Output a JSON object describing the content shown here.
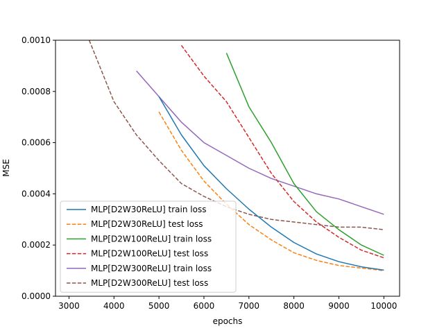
{
  "chart_data": {
    "type": "line",
    "xlabel": "epochs",
    "ylabel": "MSE",
    "xlim": [
      2700,
      10350
    ],
    "ylim": [
      0,
      0.001
    ],
    "x_ticks": [
      "3000",
      "4000",
      "5000",
      "6000",
      "7000",
      "8000",
      "9000",
      "10000"
    ],
    "y_ticks": [
      "0.0000",
      "0.0002",
      "0.0004",
      "0.0006",
      "0.0008",
      "0.0010"
    ],
    "grid": false,
    "legend_position": "lower-left",
    "series": [
      {
        "name": "MLP[D2W30ReLU] train loss",
        "color": "#1f77b4",
        "dash": "solid",
        "x": [
          5000,
          5500,
          6000,
          6500,
          7000,
          7500,
          8000,
          8500,
          9000,
          9500,
          10000
        ],
        "y": [
          0.00078,
          0.00063,
          0.00051,
          0.00042,
          0.00034,
          0.00027,
          0.00021,
          0.000165,
          0.000135,
          0.000115,
          0.000102
        ]
      },
      {
        "name": "MLP[D2W30ReLU] test loss",
        "color": "#ff7f0e",
        "dash": "dashed",
        "x": [
          5000,
          5500,
          6000,
          6500,
          7000,
          7500,
          8000,
          8500,
          9000,
          9500,
          10000
        ],
        "y": [
          0.00072,
          0.00057,
          0.00045,
          0.00036,
          0.00028,
          0.00022,
          0.00017,
          0.00014,
          0.00012,
          0.00011,
          0.0001
        ]
      },
      {
        "name": "MLP[D2W100ReLU] train loss",
        "color": "#2ca02c",
        "dash": "solid",
        "x": [
          6500,
          7000,
          7500,
          8000,
          8500,
          9000,
          9500,
          10000
        ],
        "y": [
          0.00095,
          0.00074,
          0.0006,
          0.00044,
          0.00033,
          0.00026,
          0.0002,
          0.00016
        ]
      },
      {
        "name": "MLP[D2W100ReLU] test loss",
        "color": "#d62728",
        "dash": "dashed",
        "x": [
          5500,
          6000,
          6500,
          7000,
          7500,
          8000,
          8500,
          9000,
          9500,
          10000
        ],
        "y": [
          0.00098,
          0.00086,
          0.00076,
          0.00062,
          0.00048,
          0.00037,
          0.00029,
          0.00023,
          0.00018,
          0.00015
        ]
      },
      {
        "name": "MLP[D2W300ReLU] train loss",
        "color": "#9467bd",
        "dash": "solid",
        "x": [
          4500,
          5000,
          5500,
          6000,
          6500,
          7000,
          7500,
          8000,
          8500,
          9000,
          9500,
          10000
        ],
        "y": [
          0.00088,
          0.00078,
          0.00068,
          0.0006,
          0.00055,
          0.0005,
          0.00046,
          0.00043,
          0.0004,
          0.00038,
          0.00035,
          0.00032
        ]
      },
      {
        "name": "MLP[D2W300ReLU] test loss",
        "color": "#8c564b",
        "dash": "dashed",
        "x": [
          3450,
          4000,
          4500,
          5000,
          5500,
          6000,
          6500,
          7000,
          7500,
          8000,
          8500,
          9000,
          9500,
          10000
        ],
        "y": [
          0.001,
          0.00076,
          0.00063,
          0.00053,
          0.00044,
          0.00039,
          0.00035,
          0.00032,
          0.0003,
          0.00029,
          0.00028,
          0.00027,
          0.00027,
          0.00026
        ]
      }
    ]
  }
}
